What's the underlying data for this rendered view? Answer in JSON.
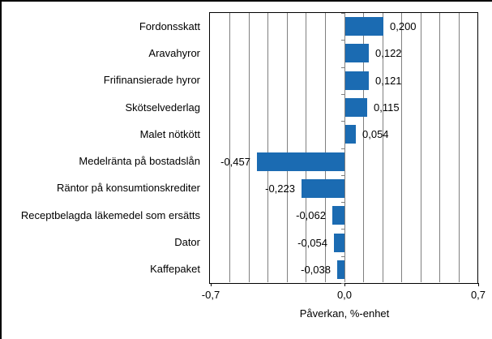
{
  "chart_data": {
    "type": "bar",
    "orientation": "horizontal",
    "categories": [
      "Fordonsskatt",
      "Aravahyror",
      "Frifinansierade hyror",
      "Skötselvederlag",
      "Malet nötkött",
      "Medelränta på bostadslån",
      "Räntor på konsumtionskrediter",
      "Receptbelagda läkemedel som ersätts",
      "Dator",
      "Kaffepaket"
    ],
    "values": [
      0.2,
      0.122,
      0.121,
      0.115,
      0.054,
      -0.457,
      -0.223,
      -0.062,
      -0.054,
      -0.038
    ],
    "value_labels": [
      "0,200",
      "0,122",
      "0,121",
      "0,115",
      "0,054",
      "-0,457",
      "-0,223",
      "-0,062",
      "-0,054",
      "-0,038"
    ],
    "xlabel": "Påverkan, %-enhet",
    "xlim": [
      -0.7,
      0.7
    ],
    "xticks": [
      {
        "value": -0.7,
        "label": "-0,7"
      },
      {
        "value": 0.0,
        "label": "0,0"
      },
      {
        "value": 0.7,
        "label": "0,7"
      }
    ],
    "gridline_step": 0.1,
    "grid": true,
    "legend": false,
    "bar_color": "#1b6bb2",
    "gridline_color": "#808080",
    "axis_color": "#000000",
    "text_color": "#000000"
  }
}
